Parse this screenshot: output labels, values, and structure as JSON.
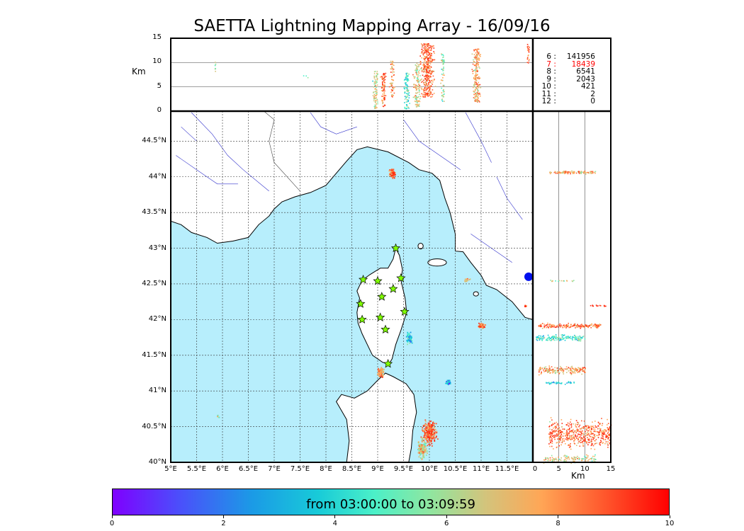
{
  "title": "SAETTA Lightning Mapping Array - 16/09/16",
  "top_panel": {
    "ylabel": "Km",
    "yticks": [
      "0",
      "5",
      "10",
      "15"
    ]
  },
  "right_panel": {
    "xlabel": "Km",
    "xticks": [
      "0",
      "5",
      "10",
      "15"
    ]
  },
  "map": {
    "lon_ticks": [
      "5°E",
      "5.5°E",
      "6°E",
      "6.5°E",
      "7°E",
      "7.5°E",
      "8°E",
      "8.5°E",
      "9°E",
      "9.5°E",
      "10°E",
      "10.5°E",
      "11°E",
      "11.5°E"
    ],
    "lat_ticks": [
      "40°N",
      "40.5°N",
      "41°N",
      "41.5°N",
      "42°N",
      "42.5°N",
      "43°N",
      "43.5°N",
      "44°N",
      "44.5°N"
    ],
    "sea_color": "#b7eefc",
    "land_color": "#ffffff",
    "river_color": "#3333cc",
    "station_color": "#80ff00",
    "stations": [
      {
        "lon": 9.35,
        "lat": 43.0
      },
      {
        "lon": 8.72,
        "lat": 42.56
      },
      {
        "lon": 9.0,
        "lat": 42.54
      },
      {
        "lon": 9.45,
        "lat": 42.58
      },
      {
        "lon": 9.3,
        "lat": 42.43
      },
      {
        "lon": 9.08,
        "lat": 42.32
      },
      {
        "lon": 8.67,
        "lat": 42.22
      },
      {
        "lon": 9.52,
        "lat": 42.11
      },
      {
        "lon": 8.7,
        "lat": 42.0
      },
      {
        "lon": 9.05,
        "lat": 42.03
      },
      {
        "lon": 9.15,
        "lat": 41.86
      },
      {
        "lon": 9.2,
        "lat": 41.38
      }
    ]
  },
  "counts": [
    {
      "key": "6",
      "value": "141956",
      "highlight": false
    },
    {
      "key": "7",
      "value": "18439",
      "highlight": true
    },
    {
      "key": "8",
      "value": "6541",
      "highlight": false
    },
    {
      "key": "9",
      "value": "2043",
      "highlight": false
    },
    {
      "key": "10",
      "value": "421",
      "highlight": false
    },
    {
      "key": "11",
      "value": "2",
      "highlight": false
    },
    {
      "key": "12",
      "value": "0",
      "highlight": false
    }
  ],
  "colorbar": {
    "label": "from 03:00:00 to 03:09:59",
    "ticks": [
      "0",
      "2",
      "4",
      "6",
      "8",
      "10"
    ]
  }
}
